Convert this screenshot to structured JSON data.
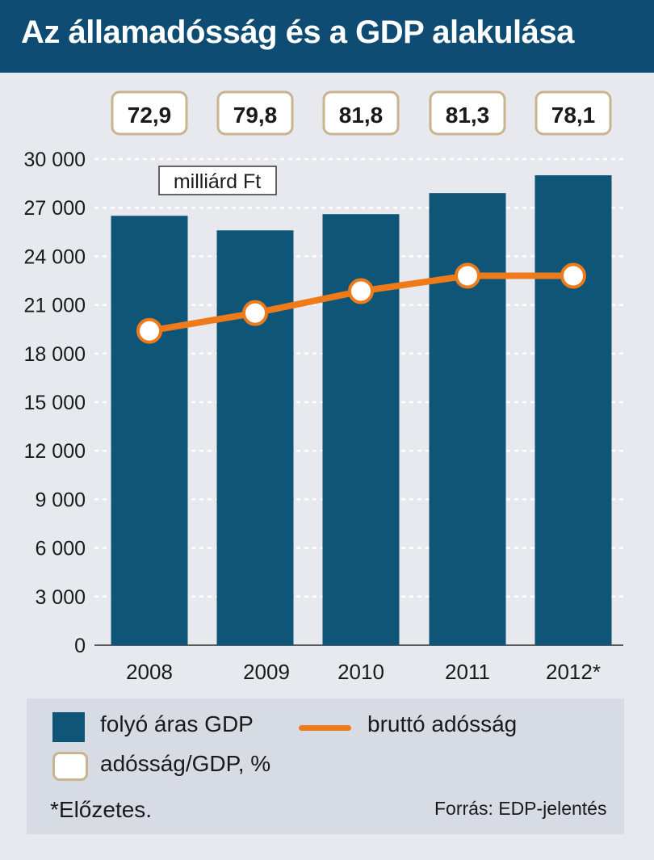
{
  "title": "Az államadósság és a GDP alakulása",
  "chart_data": {
    "type": "bar+line",
    "unit_label": "milliárd Ft",
    "categories": [
      "2008",
      "2009",
      "2010",
      "2011",
      "2012*"
    ],
    "series": [
      {
        "name": "folyó áras GDP",
        "type": "bar",
        "values": [
          26500,
          25600,
          26600,
          27900,
          29000
        ]
      },
      {
        "name": "bruttó adósság",
        "type": "line",
        "values": [
          19400,
          20500,
          21850,
          22800,
          22800
        ]
      }
    ],
    "ratio_label": "adósság/GDP, %",
    "ratio_values": [
      "72,9",
      "79,8",
      "81,8",
      "81,3",
      "78,1"
    ],
    "ylim": [
      0,
      30000
    ],
    "y_ticks": [
      0,
      3000,
      6000,
      9000,
      12000,
      15000,
      18000,
      21000,
      24000,
      27000,
      30000
    ],
    "y_tick_labels": [
      "0",
      "3 000",
      "6 000",
      "9 000",
      "12 000",
      "15 000",
      "18 000",
      "21 000",
      "24 000",
      "27 000",
      "30 000"
    ],
    "grid": true
  },
  "legend": {
    "gdp_label": "folyó áras GDP",
    "debt_label": "bruttó adósság",
    "ratio_label": "adósság/GDP, %"
  },
  "footnote": "*Előzetes.",
  "source": "Forrás: EDP-jelentés",
  "colors": {
    "title_bg": "#0e4c73",
    "bar": "#0e5578",
    "line": "#ee7a1a",
    "box_border": "#c8b48e",
    "background": "#e7e9ee",
    "legend_bg": "#d7dbe3"
  }
}
